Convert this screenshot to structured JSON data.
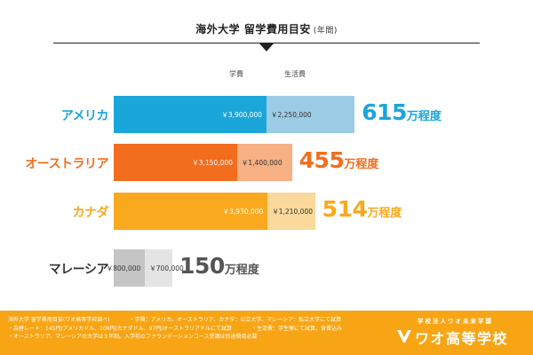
{
  "title": "海外大学 留学費用目安",
  "title_suffix": "(年間)",
  "chart_data": {
    "type": "bar",
    "stacked": true,
    "orientation": "horizontal",
    "title": "海外大学 留学費用目安",
    "categories": [
      "アメリカ",
      "オーストラリア",
      "カナダ",
      "マレーシア"
    ],
    "series": [
      {
        "name": "学費",
        "values": [
          3900000,
          3150000,
          3930000,
          800000
        ]
      },
      {
        "name": "生活費",
        "values": [
          2250000,
          1400000,
          1210000,
          700000
        ]
      }
    ],
    "value_labels": {
      "学費": [
        "￥3,900,000",
        "￥3,150,000",
        "￥3,930,000",
        "￥800,000"
      ],
      "生活費": [
        "￥2,250,000",
        "￥1,400,000",
        "￥1,210,000",
        "￥700,000"
      ]
    },
    "totals": [
      {
        "num": "615",
        "unit": "万程度"
      },
      {
        "num": "455",
        "unit": "万程度"
      },
      {
        "num": "514",
        "unit": "万程度"
      },
      {
        "num": "150",
        "unit": "万程度"
      }
    ],
    "colors": [
      {
        "dark": "#1aa6d9",
        "light": "#9ccbe6",
        "label": "#1aa6d9",
        "total": "#1aa6d9",
        "light_text": "#333333"
      },
      {
        "dark": "#f36d1f",
        "light": "#f6b083",
        "label": "#f36d1f",
        "total": "#f36d1f",
        "light_text": "#333333"
      },
      {
        "dark": "#f9a91e",
        "light": "#fbd89c",
        "label": "#f9a91e",
        "total": "#f9a91e",
        "light_text": "#333333"
      },
      {
        "dark": "#c5c5c5",
        "light": "#e4e4e4",
        "label": "#333333",
        "total": "#555555",
        "light_text": "#333333"
      }
    ]
  },
  "footer": {
    "notes": [
      "海外大学 留学費用目安(ワオ高等学校調べ)",
      "・学費：アメリカ、オーストラリア、カナダ：公立大学、マレーシア：私立大学にて試算",
      "・為替レート：145円/アメリカドル、109円/カナダドル、97円/オーストラリアドルにて試算",
      "・生活費：学生寮にて試算、食費込み",
      "・オーストラリア、マレーシアの大学は３年制。入学前のファウンデーションコース受講は別途費用必要"
    ],
    "school_sub": "学校法人ワオ未来学園",
    "school_name": "ワオ高等学校"
  }
}
